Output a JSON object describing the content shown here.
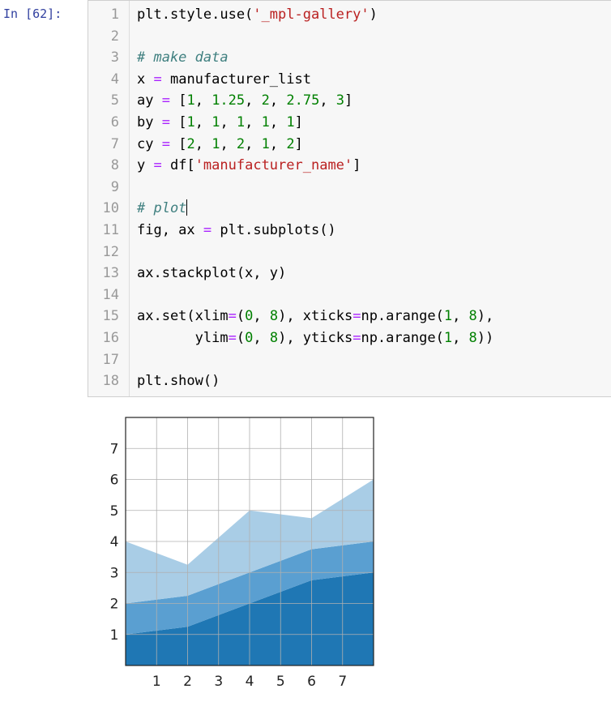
{
  "prompt": "In [62]:",
  "code_lines": [
    {
      "n": "1",
      "segs": [
        [
          "plt.style.use(",
          ""
        ],
        [
          "'_mpl-gallery'",
          "str"
        ],
        [
          ")",
          ""
        ]
      ]
    },
    {
      "n": "2",
      "segs": []
    },
    {
      "n": "3",
      "segs": [
        [
          "# make data",
          "com"
        ]
      ]
    },
    {
      "n": "4",
      "segs": [
        [
          "x ",
          ""
        ],
        [
          "=",
          "op"
        ],
        [
          " manufacturer_list",
          ""
        ]
      ]
    },
    {
      "n": "5",
      "segs": [
        [
          "ay ",
          ""
        ],
        [
          "=",
          "op"
        ],
        [
          " [",
          ""
        ],
        [
          "1",
          "num"
        ],
        [
          ", ",
          ""
        ],
        [
          "1.25",
          "num"
        ],
        [
          ", ",
          ""
        ],
        [
          "2",
          "num"
        ],
        [
          ", ",
          ""
        ],
        [
          "2.75",
          "num"
        ],
        [
          ", ",
          ""
        ],
        [
          "3",
          "num"
        ],
        [
          "]",
          ""
        ]
      ]
    },
    {
      "n": "6",
      "segs": [
        [
          "by ",
          ""
        ],
        [
          "=",
          "op"
        ],
        [
          " [",
          ""
        ],
        [
          "1",
          "num"
        ],
        [
          ", ",
          ""
        ],
        [
          "1",
          "num"
        ],
        [
          ", ",
          ""
        ],
        [
          "1",
          "num"
        ],
        [
          ", ",
          ""
        ],
        [
          "1",
          "num"
        ],
        [
          ", ",
          ""
        ],
        [
          "1",
          "num"
        ],
        [
          "]",
          ""
        ]
      ]
    },
    {
      "n": "7",
      "segs": [
        [
          "cy ",
          ""
        ],
        [
          "=",
          "op"
        ],
        [
          " [",
          ""
        ],
        [
          "2",
          "num"
        ],
        [
          ", ",
          ""
        ],
        [
          "1",
          "num"
        ],
        [
          ", ",
          ""
        ],
        [
          "2",
          "num"
        ],
        [
          ", ",
          ""
        ],
        [
          "1",
          "num"
        ],
        [
          ", ",
          ""
        ],
        [
          "2",
          "num"
        ],
        [
          "]",
          ""
        ]
      ]
    },
    {
      "n": "8",
      "segs": [
        [
          "y ",
          ""
        ],
        [
          "=",
          "op"
        ],
        [
          " df[",
          ""
        ],
        [
          "'manufacturer_name'",
          "str"
        ],
        [
          "]",
          ""
        ]
      ]
    },
    {
      "n": "9",
      "segs": []
    },
    {
      "n": "10",
      "segs": [
        [
          "# plot",
          "com"
        ]
      ],
      "cursor": true
    },
    {
      "n": "11",
      "segs": [
        [
          "fig, ax ",
          ""
        ],
        [
          "=",
          "op"
        ],
        [
          " plt.subplots()",
          ""
        ]
      ]
    },
    {
      "n": "12",
      "segs": []
    },
    {
      "n": "13",
      "segs": [
        [
          "ax.stackplot(x, y)",
          ""
        ]
      ]
    },
    {
      "n": "14",
      "segs": []
    },
    {
      "n": "15",
      "segs": [
        [
          "ax.set(xlim",
          ""
        ],
        [
          "=",
          "op"
        ],
        [
          "(",
          ""
        ],
        [
          "0",
          "num"
        ],
        [
          ", ",
          ""
        ],
        [
          "8",
          "num"
        ],
        [
          "), xticks",
          ""
        ],
        [
          "=",
          "op"
        ],
        [
          "np.arange(",
          ""
        ],
        [
          "1",
          "num"
        ],
        [
          ", ",
          ""
        ],
        [
          "8",
          "num"
        ],
        [
          "),",
          ""
        ]
      ]
    },
    {
      "n": "16",
      "segs": [
        [
          "       ylim",
          ""
        ],
        [
          "=",
          "op"
        ],
        [
          "(",
          ""
        ],
        [
          "0",
          "num"
        ],
        [
          ", ",
          ""
        ],
        [
          "8",
          "num"
        ],
        [
          "), yticks",
          ""
        ],
        [
          "=",
          "op"
        ],
        [
          "np.arange(",
          ""
        ],
        [
          "1",
          "num"
        ],
        [
          ", ",
          ""
        ],
        [
          "8",
          "num"
        ],
        [
          "))",
          ""
        ]
      ]
    },
    {
      "n": "17",
      "segs": []
    },
    {
      "n": "18",
      "segs": [
        [
          "plt.show()",
          ""
        ]
      ]
    }
  ],
  "chart_data": {
    "type": "area",
    "stacked": true,
    "x": [
      0,
      2,
      4,
      6,
      8
    ],
    "series": [
      {
        "values": [
          1,
          1.25,
          2,
          2.75,
          3
        ],
        "color": "#1f77b4"
      },
      {
        "values": [
          1,
          1,
          1,
          1,
          1
        ],
        "color": "#5a9fd1"
      },
      {
        "values": [
          2,
          1,
          2,
          1,
          2
        ],
        "color": "#a9cde6"
      }
    ],
    "xlim": [
      0,
      8
    ],
    "ylim": [
      0,
      8
    ],
    "xticks": [
      "1",
      "2",
      "3",
      "4",
      "5",
      "6",
      "7"
    ],
    "yticks": [
      "1",
      "2",
      "3",
      "4",
      "5",
      "6",
      "7"
    ],
    "grid": true,
    "grid_color": "#b0b0b0"
  }
}
